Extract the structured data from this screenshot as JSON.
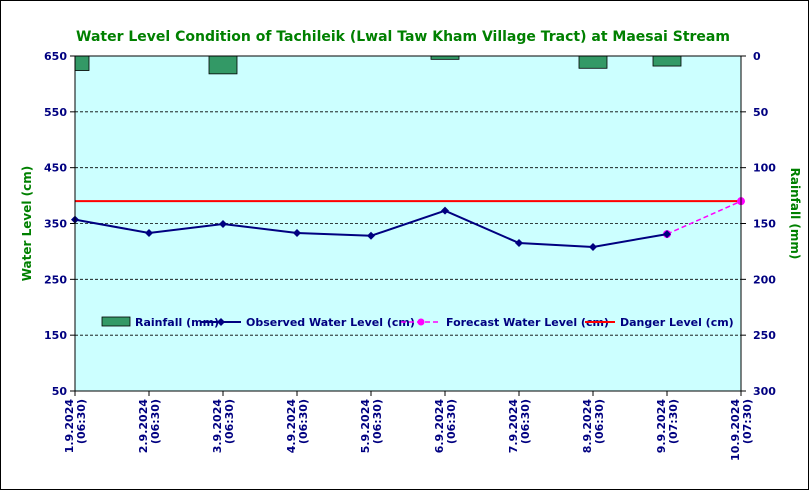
{
  "chart_data": {
    "type": "line",
    "title": "Water Level Condition of Tachileik (Lwal Taw Kham Village Tract) at Maesai Stream",
    "ylabel": "Water Level (cm)",
    "y2label": "Rainfall (mm)",
    "ylim": [
      50,
      650
    ],
    "y2lim": [
      0,
      300
    ],
    "y2_inverted": true,
    "yticks": [
      50,
      150,
      250,
      350,
      450,
      550,
      650
    ],
    "y2ticks": [
      0,
      50,
      100,
      150,
      200,
      250,
      300
    ],
    "grid": true,
    "legend_position": "lower-middle",
    "categories": [
      [
        "1.9.2024",
        "(06:30)"
      ],
      [
        "2.9.2024",
        "(06:30)"
      ],
      [
        "3.9.2024",
        "(06:30)"
      ],
      [
        "4.9.2024",
        "(06:30)"
      ],
      [
        "5.9.2024",
        "(06:30)"
      ],
      [
        "6.9.2024",
        "(06:30)"
      ],
      [
        "7.9.2024",
        "(06:30)"
      ],
      [
        "8.9.2024",
        "(06:30)"
      ],
      [
        "9.9.2024",
        "(07:30)"
      ],
      [
        "10.9.2024",
        "(07:30)"
      ]
    ],
    "series": [
      {
        "name": "Rainfall (mm)",
        "kind": "bar",
        "axis": "right",
        "color": "#339966",
        "values": [
          13,
          null,
          16,
          null,
          null,
          3,
          null,
          11,
          9,
          null
        ]
      },
      {
        "name": "Observed Water Level (cm)",
        "kind": "line",
        "axis": "left",
        "color": "#000080",
        "values": [
          357,
          333,
          349,
          333,
          328,
          373,
          315,
          308,
          331,
          null
        ]
      },
      {
        "name": "Forecast Water Level (cm)",
        "kind": "dashed-line",
        "axis": "left",
        "color": "#ff00ff",
        "values": [
          null,
          null,
          null,
          null,
          null,
          null,
          null,
          null,
          331,
          390
        ]
      },
      {
        "name": "Danger Level (cm)",
        "kind": "hline",
        "axis": "left",
        "color": "#ff0000",
        "value": 390
      }
    ],
    "colors": {
      "plot_background": "#ccffff",
      "title": "#008000",
      "axis_label": "#008000",
      "tick_label": "#000080"
    }
  }
}
